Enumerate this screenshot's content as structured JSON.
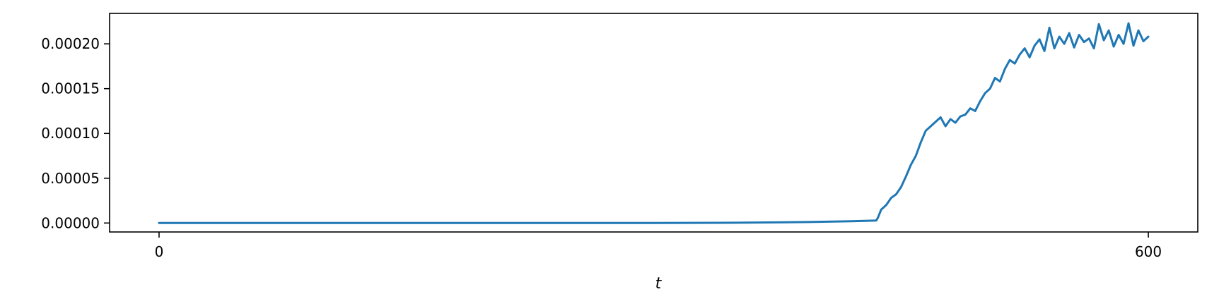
{
  "chart_data": {
    "type": "line",
    "title": "",
    "xlabel": "t",
    "ylabel": "",
    "xlim": [
      -30,
      630
    ],
    "ylim": [
      -1e-05,
      0.000234
    ],
    "x_ticks": [
      0,
      600
    ],
    "x_tick_labels": [
      "0",
      "600"
    ],
    "y_ticks": [
      0,
      5e-05,
      0.0001,
      0.00015,
      0.0002
    ],
    "y_tick_labels": [
      "0.00000",
      "0.00005",
      "0.00010",
      "0.00015",
      "0.00020"
    ],
    "grid": false,
    "colors": {
      "line": "#1f77b4",
      "axis": "#000000"
    },
    "series": [
      {
        "values_x": [
          0,
          100,
          200,
          300,
          350,
          380,
          400,
          420,
          430,
          435,
          436,
          438,
          441,
          444,
          447,
          450,
          453,
          456,
          459,
          462,
          465,
          468,
          471,
          474,
          477,
          480,
          483,
          486,
          489,
          492,
          495,
          498,
          501,
          504,
          507,
          510,
          513,
          516,
          519,
          522,
          525,
          528,
          531,
          534,
          537,
          540,
          543,
          546,
          549,
          552,
          555,
          558,
          561,
          564,
          567,
          570,
          573,
          576,
          579,
          582,
          585,
          588,
          591,
          594,
          597,
          600
        ],
        "values_y": [
          0,
          0,
          0,
          0,
          3e-07,
          8e-07,
          1.3e-06,
          2e-06,
          2.5e-06,
          2.8e-06,
          6e-06,
          1.5e-05,
          2e-05,
          2.8e-05,
          3.2e-05,
          4e-05,
          5.2e-05,
          6.5e-05,
          7.5e-05,
          9e-05,
          0.000103,
          0.000108,
          0.000113,
          0.000118,
          0.000108,
          0.000116,
          0.000112,
          0.000119,
          0.000121,
          0.000128,
          0.000125,
          0.000136,
          0.000145,
          0.00015,
          0.000162,
          0.000158,
          0.000172,
          0.000182,
          0.000178,
          0.000188,
          0.000195,
          0.000185,
          0.000198,
          0.000205,
          0.000192,
          0.000218,
          0.000195,
          0.000208,
          0.0002,
          0.000212,
          0.000196,
          0.00021,
          0.000202,
          0.000206,
          0.000195,
          0.000222,
          0.000204,
          0.000215,
          0.000197,
          0.00021,
          0.0002,
          0.000223,
          0.000198,
          0.000215,
          0.000203,
          0.000208
        ]
      }
    ]
  }
}
